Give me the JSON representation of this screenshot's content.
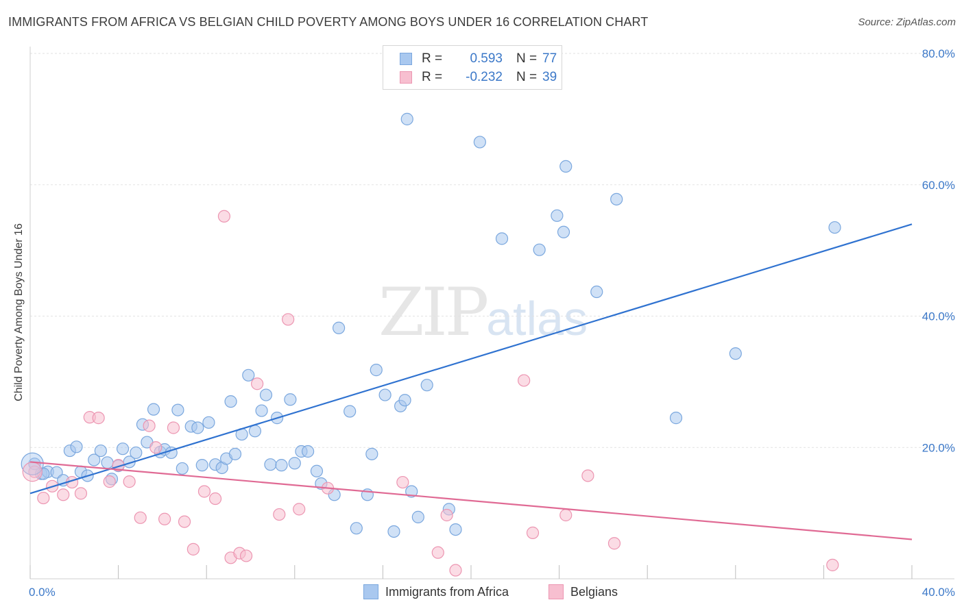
{
  "header": {
    "title": "IMMIGRANTS FROM AFRICA VS BELGIAN CHILD POVERTY AMONG BOYS UNDER 16 CORRELATION CHART",
    "source": "Source: ZipAtlas.com"
  },
  "watermark": {
    "zip": "ZIP",
    "atlas": "atlas"
  },
  "legend": {
    "rows": [
      {
        "r_label": "R =",
        "r_value": "0.593",
        "n_label": "N =",
        "n_value": "77",
        "color": "#a9c8ef",
        "border": "#7aa7de"
      },
      {
        "r_label": "R =",
        "r_value": "-0.232",
        "n_label": "N =",
        "n_value": "39",
        "color": "#f7bfd0",
        "border": "#ec95b1"
      }
    ]
  },
  "bottom_legend": {
    "items": [
      {
        "label": "Immigrants from Africa",
        "color": "#a9c8ef",
        "border": "#7aa7de"
      },
      {
        "label": "Belgians",
        "color": "#f7bfd0",
        "border": "#ec95b1"
      }
    ]
  },
  "chart_data": {
    "type": "scatter",
    "title": "IMMIGRANTS FROM AFRICA VS BELGIAN CHILD POVERTY AMONG BOYS UNDER 16 CORRELATION CHART",
    "xlabel": "",
    "ylabel": "Child Poverty Among Boys Under 16",
    "xlim": [
      0,
      40
    ],
    "ylim": [
      0,
      80
    ],
    "x_tick_labels": [
      {
        "value": 0,
        "label": "0.0%"
      },
      {
        "value": 40,
        "label": "40.0%"
      }
    ],
    "y_tick_labels": [
      {
        "value": 20,
        "label": "20.0%"
      },
      {
        "value": 40,
        "label": "40.0%"
      },
      {
        "value": 60,
        "label": "60.0%"
      },
      {
        "value": 80,
        "label": "80.0%"
      }
    ],
    "grid": true,
    "series": [
      {
        "name": "Immigrants from Africa",
        "color": "#a9c8ef",
        "border": "#7aa7de",
        "line_color": "#2f72d0",
        "trend": {
          "x0": 0,
          "y0": 13.0,
          "x1": 40,
          "y1": 54.0
        },
        "points": [
          [
            0.2,
            17.5
          ],
          [
            0.5,
            16.0
          ],
          [
            0.8,
            16.3
          ],
          [
            1.2,
            16.2
          ],
          [
            1.5,
            15.0
          ],
          [
            1.8,
            19.5
          ],
          [
            2.1,
            20.1
          ],
          [
            2.3,
            16.3
          ],
          [
            2.6,
            15.7
          ],
          [
            2.9,
            18.1
          ],
          [
            3.2,
            19.5
          ],
          [
            3.5,
            17.7
          ],
          [
            3.7,
            15.2
          ],
          [
            4.0,
            17.2
          ],
          [
            4.2,
            19.8
          ],
          [
            4.5,
            17.8
          ],
          [
            4.8,
            19.2
          ],
          [
            5.1,
            23.5
          ],
          [
            5.3,
            20.8
          ],
          [
            5.6,
            25.8
          ],
          [
            5.9,
            19.3
          ],
          [
            6.1,
            19.7
          ],
          [
            6.4,
            19.2
          ],
          [
            6.7,
            25.7
          ],
          [
            6.9,
            16.8
          ],
          [
            7.3,
            23.2
          ],
          [
            7.6,
            23.0
          ],
          [
            7.8,
            17.3
          ],
          [
            8.1,
            23.8
          ],
          [
            8.4,
            17.4
          ],
          [
            8.7,
            16.9
          ],
          [
            8.9,
            18.3
          ],
          [
            9.1,
            27.0
          ],
          [
            9.3,
            19.0
          ],
          [
            9.6,
            22.0
          ],
          [
            9.9,
            31.0
          ],
          [
            10.2,
            22.5
          ],
          [
            10.5,
            25.6
          ],
          [
            10.7,
            28.0
          ],
          [
            10.9,
            17.4
          ],
          [
            11.2,
            24.5
          ],
          [
            11.4,
            17.3
          ],
          [
            11.8,
            27.3
          ],
          [
            12.0,
            17.6
          ],
          [
            12.3,
            19.4
          ],
          [
            12.6,
            19.4
          ],
          [
            13.0,
            16.4
          ],
          [
            13.2,
            14.5
          ],
          [
            13.8,
            12.8
          ],
          [
            14.0,
            38.2
          ],
          [
            14.5,
            25.5
          ],
          [
            14.8,
            7.7
          ],
          [
            15.3,
            12.8
          ],
          [
            15.5,
            19.0
          ],
          [
            15.7,
            31.8
          ],
          [
            16.1,
            28.0
          ],
          [
            16.5,
            7.2
          ],
          [
            16.8,
            26.3
          ],
          [
            17.0,
            27.2
          ],
          [
            17.3,
            13.3
          ],
          [
            17.6,
            9.4
          ],
          [
            17.1,
            70.0
          ],
          [
            18.0,
            29.5
          ],
          [
            19.0,
            10.6
          ],
          [
            19.3,
            7.5
          ],
          [
            20.4,
            66.5
          ],
          [
            21.4,
            51.8
          ],
          [
            23.1,
            50.1
          ],
          [
            23.9,
            55.3
          ],
          [
            24.2,
            52.8
          ],
          [
            24.3,
            62.8
          ],
          [
            25.7,
            43.7
          ],
          [
            26.6,
            57.8
          ],
          [
            29.3,
            24.5
          ],
          [
            32.0,
            34.3
          ],
          [
            36.5,
            53.5
          ],
          [
            0.6,
            16.0
          ]
        ]
      },
      {
        "name": "Belgians",
        "color": "#f7bfd0",
        "border": "#ec95b1",
        "line_color": "#e06a94",
        "trend": {
          "x0": 0,
          "y0": 17.8,
          "x1": 40,
          "y1": 6.0
        },
        "points": [
          [
            0.2,
            16.3
          ],
          [
            0.6,
            12.3
          ],
          [
            1.0,
            14.1
          ],
          [
            1.5,
            12.8
          ],
          [
            1.9,
            14.7
          ],
          [
            2.3,
            13.0
          ],
          [
            2.7,
            24.6
          ],
          [
            3.1,
            24.5
          ],
          [
            3.6,
            14.8
          ],
          [
            4.0,
            17.3
          ],
          [
            4.5,
            14.8
          ],
          [
            5.0,
            9.3
          ],
          [
            5.4,
            23.3
          ],
          [
            5.7,
            20.0
          ],
          [
            6.1,
            9.1
          ],
          [
            6.5,
            23.0
          ],
          [
            7.0,
            8.7
          ],
          [
            7.4,
            4.5
          ],
          [
            7.9,
            13.3
          ],
          [
            8.4,
            12.2
          ],
          [
            8.8,
            55.2
          ],
          [
            9.1,
            3.2
          ],
          [
            9.5,
            3.9
          ],
          [
            9.8,
            3.5
          ],
          [
            10.3,
            29.7
          ],
          [
            11.3,
            9.8
          ],
          [
            11.7,
            39.5
          ],
          [
            12.2,
            10.6
          ],
          [
            13.5,
            13.8
          ],
          [
            16.9,
            14.7
          ],
          [
            18.5,
            4.0
          ],
          [
            18.9,
            9.7
          ],
          [
            19.3,
            1.3
          ],
          [
            22.4,
            30.2
          ],
          [
            22.8,
            7.0
          ],
          [
            24.3,
            9.7
          ],
          [
            25.3,
            15.7
          ],
          [
            26.5,
            5.4
          ],
          [
            36.4,
            2.1
          ]
        ]
      }
    ]
  }
}
